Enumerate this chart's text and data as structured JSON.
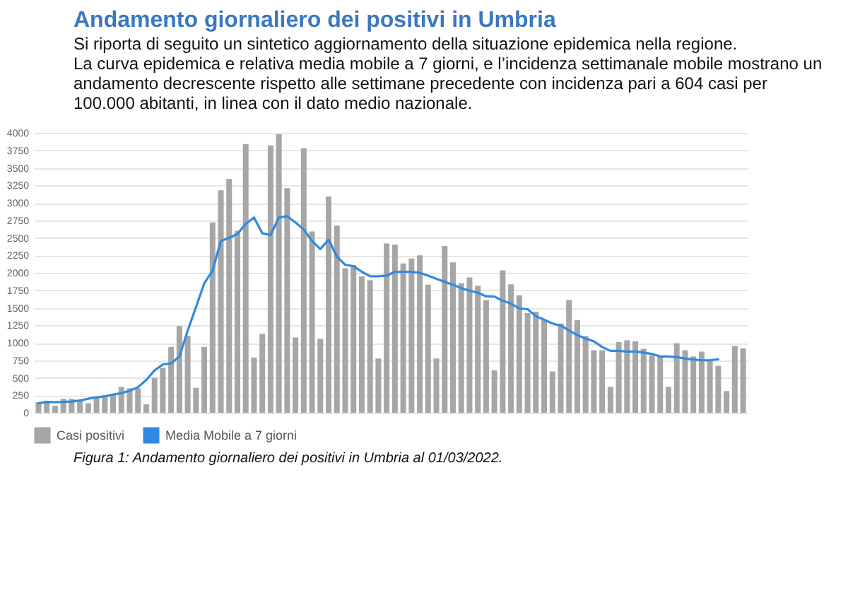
{
  "chart_data": {
    "type": "bar",
    "title": "Andamento giornaliero dei positivi in Umbria",
    "subtitle": "Si riporta di seguito un sintetico aggiornamento della situazione epidemica nella regione.",
    "annotations": [
      "La curva epidemica e relativa media mobile a 7 giorni, e l’incidenza settimanale mobile mostrano un andamento decrescente rispetto alle settimane precedente con incidenza pari a 604 casi per 100.000 abitanti, in linea con il dato medio nazionale.",
      "Figura 1: Andamento giornaliero dei positivi in Umbria al 01/03/2022."
    ],
    "categories": [
      null,
      null,
      null,
      null,
      null,
      null,
      null,
      null,
      null,
      null,
      null,
      null,
      null,
      null,
      null,
      null,
      null,
      null,
      null,
      null,
      null,
      null,
      null,
      null,
      null,
      null,
      null,
      null,
      null,
      null,
      null,
      null,
      null,
      null,
      null,
      null,
      null,
      null,
      null,
      null,
      null,
      null,
      null,
      null,
      null,
      null,
      null,
      null,
      null,
      null,
      null,
      null,
      null,
      null,
      null,
      null,
      null,
      null,
      null,
      null,
      null,
      null,
      null,
      null,
      null,
      null,
      null,
      null,
      null,
      null,
      null,
      null,
      null,
      null,
      null,
      null,
      null,
      null,
      null,
      null,
      null,
      null,
      null,
      null,
      null,
      null
    ],
    "series": [
      {
        "name": "Casi positivi",
        "color": "#a6a6a6",
        "values": [
          150,
          170,
          100,
          200,
          200,
          170,
          135,
          235,
          255,
          270,
          370,
          350,
          350,
          120,
          500,
          640,
          940,
          1240,
          1100,
          356,
          940,
          2720,
          3180,
          3340,
          2600,
          3840,
          790,
          1130,
          3820,
          3980,
          3210,
          1075,
          3780,
          2590,
          1055,
          3090,
          2675,
          2065,
          2110,
          1950,
          1895,
          775,
          2420,
          2405,
          2135,
          2205,
          2250,
          1830,
          775,
          2385,
          2150,
          1850,
          1935,
          1815,
          1610,
          605,
          2035,
          1835,
          1680,
          1425,
          1445,
          1330,
          590,
          1275,
          1610,
          1325,
          1095,
          895,
          895,
          370,
          1010,
          1035,
          1020,
          915,
          820,
          805,
          370,
          995,
          895,
          805,
          875,
          740,
          670,
          310,
          955,
          920
        ]
      },
      {
        "name": "Media Mobile a 7 giorni",
        "type": "line",
        "color": "#2f8ae0",
        "values": [
          135,
          155,
          150,
          155,
          160,
          175,
          200,
          220,
          235,
          260,
          280,
          315,
          365,
          470,
          605,
          690,
          705,
          805,
          1175,
          1510,
          1850,
          2030,
          2455,
          2500,
          2555,
          2700,
          2790,
          2565,
          2540,
          2790,
          2810,
          2720,
          2620,
          2455,
          2340,
          2475,
          2230,
          2115,
          2095,
          2015,
          1950,
          1950,
          1960,
          2015,
          2015,
          2015,
          2000,
          1960,
          1915,
          1870,
          1830,
          1780,
          1745,
          1715,
          1665,
          1660,
          1600,
          1560,
          1490,
          1480,
          1380,
          1330,
          1275,
          1245,
          1175,
          1110,
          1060,
          1020,
          940,
          885,
          885,
          875,
          875,
          860,
          840,
          805,
          805,
          795,
          775,
          760,
          750,
          750,
          765,
          null,
          null,
          null
        ]
      }
    ],
    "ylim": [
      0,
      4000
    ],
    "yticks": [
      0,
      250,
      500,
      750,
      1000,
      1250,
      1500,
      1750,
      2000,
      2250,
      2500,
      2750,
      3000,
      3250,
      3500,
      3750,
      4000
    ],
    "grid": "y",
    "legend": "bottom"
  }
}
